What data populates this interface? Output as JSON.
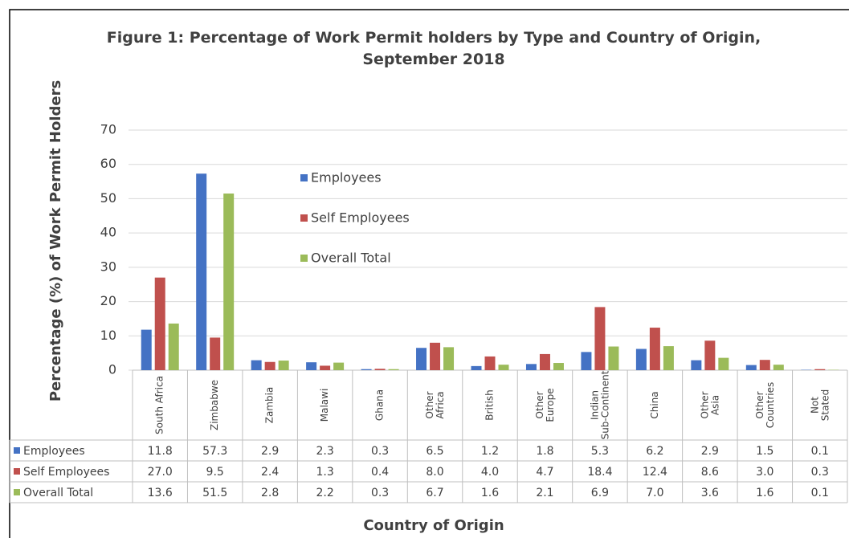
{
  "chart_data": {
    "type": "bar",
    "title": "Figure 1: Percentage of Work Permit holders by Type and Country of Origin,\nSeptember 2018",
    "ylabel": "Percentage (%) of Work Permit Holders",
    "xlabel": "Country of Origin",
    "categories": [
      "South Africa",
      "Zimbabwe",
      "Zambia",
      "Malawi",
      "Ghana",
      "Other\nAfrica",
      "British",
      "Other\nEurope",
      "Indian\nSub-Continent",
      "China",
      "Other\nAsia",
      "Other\nCountries",
      "Not\nStated"
    ],
    "ylim": [
      0,
      70
    ],
    "yticks": [
      0,
      10,
      20,
      30,
      40,
      50,
      60,
      70
    ],
    "grid": true,
    "series": [
      {
        "name": "Employees",
        "color": "#4472c4",
        "values": [
          11.8,
          57.3,
          2.9,
          2.3,
          0.3,
          6.5,
          1.2,
          1.8,
          5.3,
          6.2,
          2.9,
          1.5,
          0.1
        ],
        "value_labels": [
          "11.8",
          "57.3",
          "2.9",
          "2.3",
          "0.3",
          "6.5",
          "1.2",
          "1.8",
          "5.3",
          "6.2",
          "2.9",
          "1.5",
          "0.1"
        ]
      },
      {
        "name": "Self Employees",
        "color": "#c0504d",
        "values": [
          27.0,
          9.5,
          2.4,
          1.3,
          0.4,
          8.0,
          4.0,
          4.7,
          18.4,
          12.4,
          8.6,
          3.0,
          0.3
        ],
        "value_labels": [
          "27.0",
          "9.5",
          "2.4",
          "1.3",
          "0.4",
          "8.0",
          "4.0",
          "4.7",
          "18.4",
          "12.4",
          "8.6",
          "3.0",
          "0.3"
        ]
      },
      {
        "name": "Overall Total",
        "color": "#9bbb59",
        "values": [
          13.6,
          51.5,
          2.8,
          2.2,
          0.3,
          6.7,
          1.6,
          2.1,
          6.9,
          7.0,
          3.6,
          1.6,
          0.1
        ],
        "value_labels": [
          "13.6",
          "51.5",
          "2.8",
          "2.2",
          "0.3",
          "6.7",
          "1.6",
          "2.1",
          "6.9",
          "7.0",
          "3.6",
          "1.6",
          "0.1"
        ]
      }
    ]
  }
}
